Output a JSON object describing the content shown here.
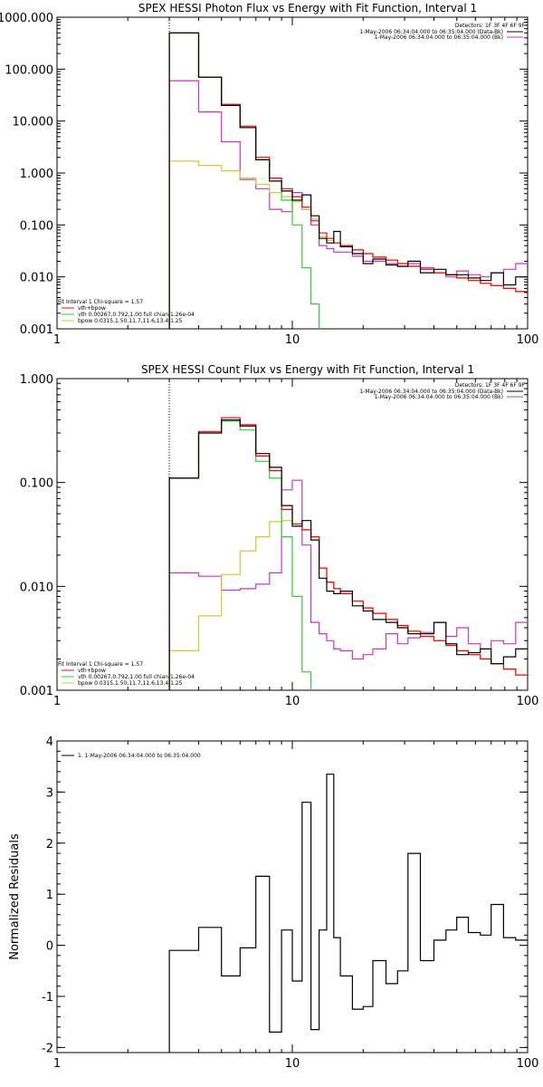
{
  "chart_data": [
    {
      "type": "line",
      "title": "SPEX HESSI Photon Flux vs Energy with Fit Function, Interval 1",
      "xscale": "log",
      "yscale": "log",
      "xlim": [
        1,
        100
      ],
      "ylim": [
        0.001,
        1000
      ],
      "xticks": [
        1,
        10,
        100
      ],
      "xtick_labels": [
        "1",
        "10",
        "100"
      ],
      "yticks": [
        0.001,
        0.01,
        0.1,
        1,
        10,
        100,
        1000
      ],
      "ytick_labels": [
        "0.001",
        "0.010",
        "0.100",
        "1.000",
        "10.000",
        "100.000",
        "1000.000"
      ],
      "detectors": "Detectors: 1F 3F 4F 6F 9F",
      "legend_right": [
        {
          "text": "1-May-2006 06:34:04.000 to 06:35:04.000 (Data-Bk)",
          "color": "#000000"
        },
        {
          "text": "1-May-2006 06:34:04.000 to 06:35:04.000 (Bk)",
          "color": "#cc33cc"
        }
      ],
      "legend_left": [
        {
          "text": "Fit Interval 1    Chi-square = 1.57",
          "color": null
        },
        {
          "text": "vth+bpow",
          "color": "#ff0000"
        },
        {
          "text": "vth 0.00267,0.792,1.00    full chian 1.26e-04",
          "color": "#33cc33"
        },
        {
          "text": "bpow 0.0315,1.50,11.7,11.6,13.4,1.25",
          "color": "#cccc33"
        }
      ],
      "fit_start_energy": 3,
      "series": [
        {
          "name": "Data-Bk",
          "color": "#000000",
          "edges": [
            3,
            4,
            5,
            6,
            7,
            8,
            9,
            10,
            11,
            12,
            13,
            14,
            15,
            16,
            18,
            20,
            22,
            25,
            28,
            31,
            35,
            40,
            45,
            50,
            56,
            63,
            70,
            79,
            89,
            100
          ],
          "values": [
            500,
            70,
            20,
            7.5,
            1.8,
            0.7,
            0.45,
            0.3,
            0.38,
            0.15,
            0.055,
            0.045,
            0.075,
            0.038,
            0.028,
            0.018,
            0.022,
            0.017,
            0.016,
            0.02,
            0.012,
            0.014,
            0.011,
            0.011,
            0.0095,
            0.0085,
            0.012,
            0.007,
            0.01
          ]
        },
        {
          "name": "vth+bpow",
          "color": "#ff0000",
          "edges": [
            3,
            4,
            5,
            6,
            7,
            8,
            9,
            10,
            11,
            12,
            13,
            14,
            15,
            16,
            18,
            20,
            22,
            25,
            28,
            31,
            35,
            40,
            45,
            50,
            56,
            63,
            70,
            79,
            89,
            100
          ],
          "values": [
            500,
            70,
            21,
            8,
            2,
            0.8,
            0.5,
            0.35,
            0.22,
            0.12,
            0.07,
            0.055,
            0.045,
            0.04,
            0.033,
            0.028,
            0.024,
            0.021,
            0.018,
            0.016,
            0.014,
            0.012,
            0.011,
            0.0095,
            0.0085,
            0.0075,
            0.0068,
            0.006,
            0.0052
          ]
        },
        {
          "name": "vth",
          "color": "#33cc33",
          "edges": [
            3,
            4,
            5,
            6,
            7,
            8,
            9,
            10,
            11,
            12,
            13
          ],
          "values": [
            500,
            70,
            20,
            7.5,
            1.8,
            0.8,
            0.3,
            0.1,
            0.015,
            0.003
          ]
        },
        {
          "name": "bpow",
          "color": "#cccc33",
          "edges": [
            3,
            4,
            5,
            6,
            7,
            8,
            9,
            10,
            11,
            12,
            13,
            14,
            15,
            16,
            18,
            20,
            22,
            25,
            28,
            31,
            35,
            40,
            45,
            50,
            56,
            63,
            70,
            79,
            89,
            100
          ],
          "values": [
            1.7,
            1.4,
            1.1,
            0.8,
            0.6,
            0.42,
            0.35,
            0.28,
            0.2,
            0.13,
            0.06,
            0.05,
            0.045,
            0.04,
            0.033,
            0.028,
            0.024,
            0.021,
            0.018,
            0.016,
            0.014,
            0.012,
            0.011,
            0.0095,
            0.0085,
            0.0075,
            0.0068,
            0.006,
            0.0052
          ]
        },
        {
          "name": "Bk",
          "color": "#cc33cc",
          "edges": [
            3,
            4,
            5,
            6,
            7,
            8,
            9,
            10,
            11,
            12,
            13,
            14,
            15,
            16,
            18,
            20,
            22,
            25,
            28,
            31,
            35,
            40,
            45,
            50,
            56,
            63,
            70,
            79,
            89,
            100
          ],
          "values": [
            60,
            15,
            4,
            0.75,
            0.5,
            0.2,
            0.18,
            0.42,
            0.2,
            0.1,
            0.04,
            0.035,
            0.03,
            0.03,
            0.025,
            0.02,
            0.02,
            0.018,
            0.016,
            0.018,
            0.015,
            0.012,
            0.01,
            0.013,
            0.011,
            0.01,
            0.012,
            0.014,
            0.018
          ]
        }
      ]
    },
    {
      "type": "line",
      "title": "SPEX HESSI Count Flux vs Energy with Fit Function, Interval 1",
      "xscale": "log",
      "yscale": "log",
      "xlim": [
        1,
        100
      ],
      "ylim": [
        0.001,
        1
      ],
      "xticks": [
        1,
        10,
        100
      ],
      "xtick_labels": [
        "1",
        "10",
        "100"
      ],
      "yticks": [
        0.001,
        0.01,
        0.1,
        1
      ],
      "ytick_labels": [
        "0.001",
        "0.010",
        "0.100",
        "1.000"
      ],
      "detectors": "Detectors: 1F 3F 4F 6F 9F",
      "legend_right": [
        {
          "text": "1-May-2006 06:34:04.000 to 06:35:04.000 (Data-Bk)",
          "color": "#000000"
        },
        {
          "text": "1-May-2006 06:34:04.000 to 06:35:04.000 (Bk)",
          "color": "#cc33cc"
        }
      ],
      "legend_left": [
        {
          "text": "Fit Interval 1    Chi-square = 1.57",
          "color": null
        },
        {
          "text": "vth+bpow",
          "color": "#ff0000"
        },
        {
          "text": "vth 0.00267,0.792,1.00    full chian 1.26e-04",
          "color": "#33cc33"
        },
        {
          "text": "bpow 0.0315,1.50,11.7,11.6,13.4,1.25",
          "color": "#cccc33"
        }
      ],
      "fit_start_energy": 3,
      "series": [
        {
          "name": "Data-Bk",
          "color": "#000000",
          "edges": [
            3,
            4,
            5,
            6,
            7,
            8,
            9,
            10,
            11,
            12,
            13,
            14,
            15,
            16,
            18,
            20,
            22,
            25,
            28,
            31,
            35,
            40,
            45,
            50,
            56,
            63,
            70,
            79,
            89,
            100
          ],
          "values": [
            0.11,
            0.3,
            0.4,
            0.35,
            0.19,
            0.14,
            0.06,
            0.038,
            0.043,
            0.028,
            0.012,
            0.009,
            0.0085,
            0.009,
            0.0065,
            0.0058,
            0.0048,
            0.0045,
            0.004,
            0.0035,
            0.0035,
            0.0045,
            0.0028,
            0.0022,
            0.0023,
            0.0025,
            0.0018,
            0.0021,
            0.0025
          ]
        },
        {
          "name": "vth+bpow",
          "color": "#ff0000",
          "edges": [
            3,
            4,
            5,
            6,
            7,
            8,
            9,
            10,
            11,
            12,
            13,
            14,
            15,
            16,
            18,
            20,
            22,
            25,
            28,
            31,
            35,
            40,
            45,
            50,
            56,
            63,
            70,
            79,
            89,
            100
          ],
          "values": [
            0.11,
            0.31,
            0.42,
            0.36,
            0.18,
            0.13,
            0.055,
            0.04,
            0.035,
            0.03,
            0.015,
            0.011,
            0.0095,
            0.0085,
            0.0072,
            0.0062,
            0.0055,
            0.0048,
            0.0042,
            0.0037,
            0.0033,
            0.003,
            0.0027,
            0.0024,
            0.0022,
            0.002,
            0.0018,
            0.0016,
            0.0014
          ]
        },
        {
          "name": "vth",
          "color": "#33cc33",
          "edges": [
            3,
            4,
            5,
            6,
            7,
            8,
            9,
            10,
            11,
            12
          ],
          "values": [
            0.11,
            0.3,
            0.39,
            0.32,
            0.16,
            0.11,
            0.03,
            0.008,
            0.0015
          ]
        },
        {
          "name": "bpow",
          "color": "#cccc33",
          "edges": [
            3,
            4,
            5,
            6,
            7,
            8,
            9,
            10,
            11,
            12,
            13,
            14,
            15,
            16,
            18,
            20,
            22,
            25,
            28,
            31,
            35,
            40,
            45,
            50,
            56,
            63,
            70,
            79,
            89,
            100
          ],
          "values": [
            0.0024,
            0.0052,
            0.013,
            0.022,
            0.03,
            0.042,
            0.043,
            0.04,
            0.035,
            0.03,
            0.015,
            0.011,
            0.0095,
            0.0085,
            0.0072,
            0.0062,
            0.0055,
            0.0048,
            0.0042,
            0.0037,
            0.0033,
            0.003,
            0.0027,
            0.0024,
            0.0022,
            0.002,
            0.0018,
            0.0016,
            0.0014
          ]
        },
        {
          "name": "Bk",
          "color": "#cc33cc",
          "edges": [
            3,
            4,
            5,
            6,
            7,
            8,
            9,
            10,
            11,
            12,
            13,
            14,
            15,
            16,
            18,
            20,
            22,
            25,
            28,
            31,
            35,
            40,
            45,
            50,
            56,
            63,
            70,
            79,
            89,
            100
          ],
          "values": [
            0.0135,
            0.0125,
            0.0092,
            0.0095,
            0.0105,
            0.0135,
            0.085,
            0.105,
            0.025,
            0.0045,
            0.0035,
            0.003,
            0.0025,
            0.0024,
            0.002,
            0.0022,
            0.0025,
            0.0035,
            0.0028,
            0.0032,
            0.0036,
            0.0045,
            0.0033,
            0.004,
            0.0028,
            0.0025,
            0.003,
            0.0028,
            0.0045
          ]
        }
      ]
    },
    {
      "type": "line",
      "title": "",
      "xscale": "log",
      "xlim": [
        1,
        100
      ],
      "ylim": [
        -2.1,
        4
      ],
      "xticks": [
        1,
        10,
        100
      ],
      "xtick_labels": [
        "1",
        "10",
        "100"
      ],
      "yticks": [
        -2,
        -1,
        0,
        1,
        2,
        3,
        4
      ],
      "ytick_labels": [
        "-2",
        "-1",
        "0",
        "1",
        "2",
        "3",
        "4"
      ],
      "ylabel": "Normalized Residuals",
      "legend_left": [
        {
          "text": "1. 1-May-2006 06:34:04.000 to 06:35:04.000",
          "color": "#000000"
        }
      ],
      "series": [
        {
          "name": "1. 1-May-2006 06:34:04.000 to 06:35:04.000",
          "color": "#000000",
          "edges": [
            3,
            4,
            5,
            6,
            7,
            8,
            9,
            10,
            11,
            12,
            13,
            14,
            15,
            16,
            18,
            20,
            22,
            25,
            28,
            31,
            35,
            40,
            45,
            50,
            56,
            63,
            70,
            79,
            89,
            100
          ],
          "values": [
            -0.1,
            0.35,
            -0.6,
            -0.05,
            1.35,
            -1.7,
            0.3,
            -0.7,
            2.8,
            -1.65,
            0.3,
            3.35,
            0.15,
            -0.6,
            -1.25,
            -1.2,
            -0.3,
            -0.75,
            -0.5,
            1.8,
            -0.3,
            0.1,
            0.3,
            0.55,
            0.25,
            0.2,
            0.8,
            0.15,
            0.1
          ]
        }
      ]
    }
  ]
}
